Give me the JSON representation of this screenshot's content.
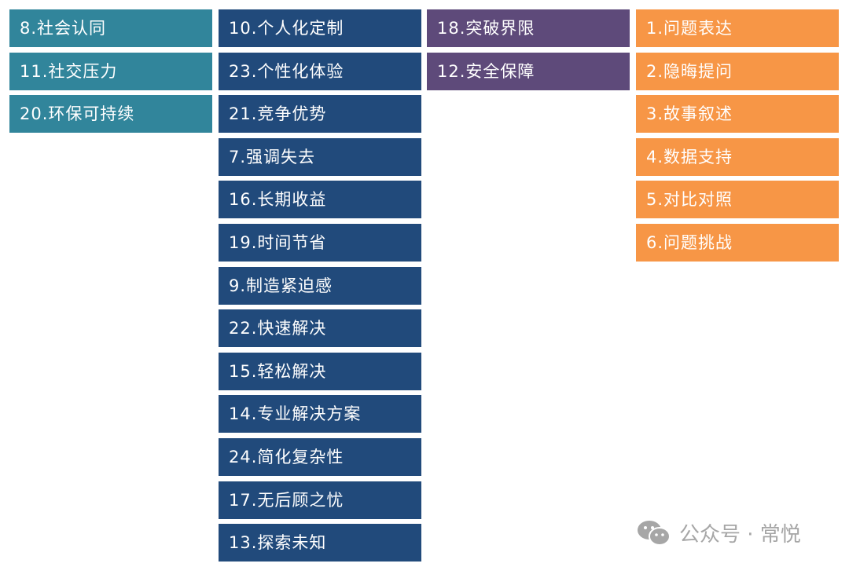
{
  "columns": [
    {
      "color": "#31859b",
      "items": [
        "8.社会认同",
        "11.社交压力",
        "20.环保可持续"
      ]
    },
    {
      "color": "#214a7b",
      "items": [
        "10.个人化定制",
        "23.个性化体验",
        "21.竞争优势",
        "7.强调失去",
        "16.长期收益",
        "19.时间节省",
        "9.制造紧迫感",
        "22.快速解决",
        "15.轻松解决",
        "14.专业解决方案",
        "24.简化复杂性",
        "17.无后顾之忧",
        "13.探索未知"
      ]
    },
    {
      "color": "#5e4a7a",
      "items": [
        "18.突破界限",
        "12.安全保障"
      ]
    },
    {
      "color": "#f79646",
      "items": [
        "1.问题表达",
        "2.隐晦提问",
        "3.故事叙述",
        "4.数据支持",
        "5.对比对照",
        "6.问题挑战"
      ]
    }
  ],
  "watermark": {
    "icon": "wechat-icon",
    "text": "公众号 · 常悦"
  }
}
